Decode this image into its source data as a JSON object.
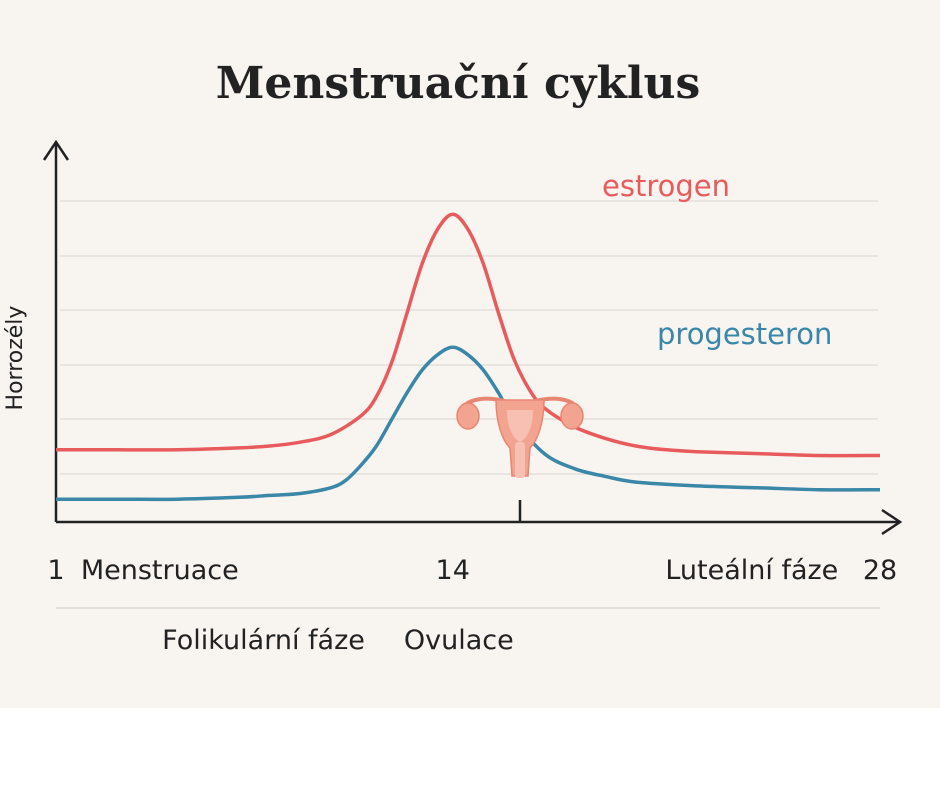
{
  "chart_data": {
    "type": "line",
    "title": "Menstruační cyklus",
    "xlabel": "",
    "ylabel": "Horrozély",
    "xlim": [
      1,
      28
    ],
    "ylim": [
      0,
      10
    ],
    "grid": true,
    "x_ticks": [
      {
        "value": 1,
        "label": "1"
      },
      {
        "value": 14,
        "label": "14"
      },
      {
        "value": 28,
        "label": "28"
      }
    ],
    "phase_labels": {
      "upper": [
        {
          "x": 4.4,
          "label": "Menstruace"
        },
        {
          "x": 23.8,
          "label": "Luteální fáze"
        }
      ],
      "lower": [
        {
          "x": 7.8,
          "label": "Folikulární fáze"
        },
        {
          "x": 14.2,
          "label": "Ovulace"
        }
      ]
    },
    "series": [
      {
        "name": "estrogen",
        "color": "#e85b5d",
        "x": [
          1,
          3,
          5,
          7,
          8,
          9,
          10,
          11,
          11.5,
          12,
          12.5,
          13,
          13.5,
          14,
          14.5,
          15,
          15.5,
          16,
          16.5,
          17,
          18,
          19,
          20,
          21,
          22,
          24,
          26,
          28
        ],
        "y": [
          1.9,
          1.9,
          1.9,
          1.95,
          2.0,
          2.1,
          2.3,
          2.8,
          3.3,
          4.2,
          5.5,
          6.8,
          7.7,
          8.1,
          7.7,
          6.8,
          5.5,
          4.3,
          3.5,
          3.0,
          2.5,
          2.2,
          2.0,
          1.9,
          1.85,
          1.8,
          1.75,
          1.75
        ]
      },
      {
        "name": "progesteron",
        "color": "#3a87a8",
        "x": [
          1,
          3,
          5,
          7,
          8,
          9,
          10,
          10.5,
          11,
          11.5,
          12,
          12.5,
          13,
          13.5,
          14,
          14.5,
          15,
          15.5,
          16,
          17,
          18,
          19,
          20,
          22,
          24,
          26,
          28
        ],
        "y": [
          0.6,
          0.6,
          0.6,
          0.65,
          0.7,
          0.75,
          0.9,
          1.1,
          1.5,
          2.0,
          2.7,
          3.4,
          4.0,
          4.4,
          4.6,
          4.4,
          4.0,
          3.4,
          2.7,
          1.8,
          1.4,
          1.2,
          1.05,
          0.95,
          0.9,
          0.85,
          0.85
        ]
      }
    ]
  }
}
